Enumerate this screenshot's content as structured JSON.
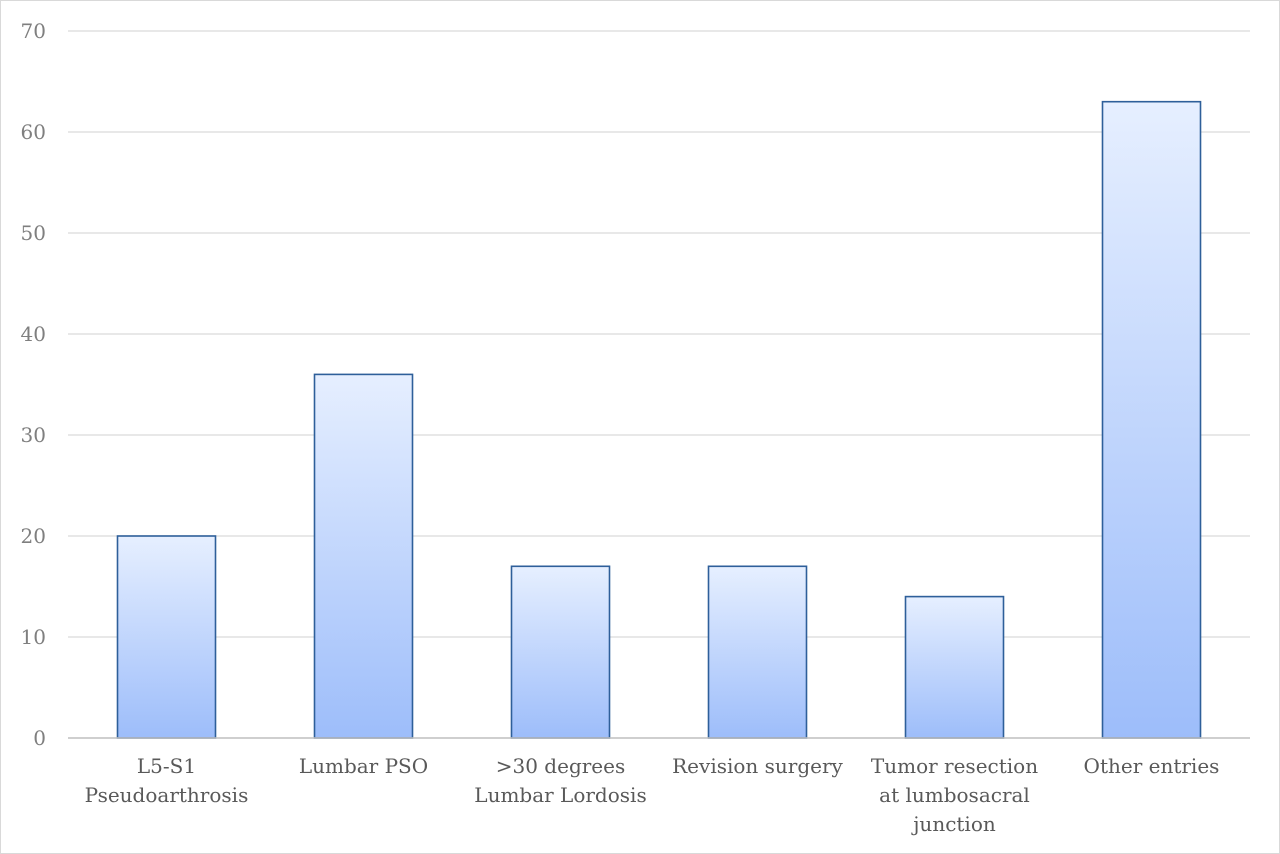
{
  "chart_data": {
    "type": "bar",
    "title": "",
    "xlabel": "",
    "ylabel": "",
    "categories": [
      [
        "L5-S1",
        "Pseudoarthrosis"
      ],
      [
        "Lumbar PSO"
      ],
      [
        ">30 degrees",
        "Lumbar Lordosis"
      ],
      [
        "Revision surgery"
      ],
      [
        "Tumor resection",
        "at lumbosacral",
        "junction"
      ],
      [
        "Other entries"
      ]
    ],
    "values": [
      20,
      36,
      17,
      17,
      14,
      63
    ],
    "ylim": [
      0,
      70
    ],
    "yticks": [
      0,
      10,
      20,
      30,
      40,
      50,
      60,
      70
    ],
    "grid": true,
    "legend": "none",
    "colors": {
      "bar_top": "#e6efff",
      "bar_bottom": "#9dbdfa",
      "bar_stroke": "#2e5f9a",
      "grid": "#d9d9d9",
      "axis": "#bfbfbf"
    }
  }
}
